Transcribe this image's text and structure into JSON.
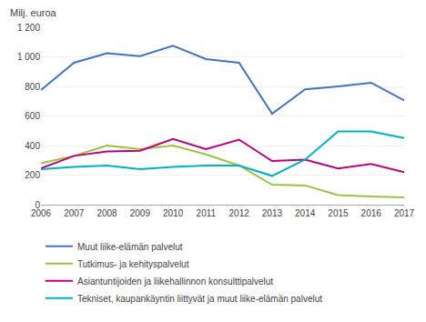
{
  "chart_data": {
    "type": "line",
    "ylabel": "Milj. euroa",
    "x": [
      2006,
      2007,
      2008,
      2009,
      2010,
      2011,
      2012,
      2013,
      2014,
      2015,
      2016,
      2017
    ],
    "xlim": [
      2006,
      2017
    ],
    "xticks": [
      2006,
      2007,
      2008,
      2009,
      2010,
      2011,
      2012,
      2013,
      2014,
      2015,
      2016,
      2017
    ],
    "ylim": [
      0,
      1200
    ],
    "yticks": [
      0,
      200,
      400,
      600,
      800,
      {
        "value": 1000,
        "label": "1 000"
      },
      {
        "value": 1200,
        "label": "1 200"
      }
    ],
    "grid": true,
    "legend": "bottom",
    "series": [
      {
        "name": "Muut liike-elämän palvelut",
        "color": "#4472c4",
        "values": [
          775,
          960,
          1025,
          1005,
          1075,
          985,
          960,
          615,
          780,
          800,
          825,
          705
        ]
      },
      {
        "name": "Tutkimus- ja kehityspalvelut",
        "color": "#9dc242",
        "values": [
          280,
          330,
          400,
          375,
          400,
          340,
          265,
          135,
          130,
          65,
          55,
          50
        ]
      },
      {
        "name": "Asiantuntijoiden ja liikehallinnon konsulttipalvelut",
        "color": "#c0007a",
        "values": [
          245,
          330,
          360,
          365,
          445,
          375,
          440,
          295,
          305,
          245,
          275,
          220
        ]
      },
      {
        "name": "Tekniset, kaupankäyntin liittyvät ja muut liike-elämän palvelut",
        "color": "#00b0c8",
        "values": [
          240,
          255,
          265,
          240,
          255,
          265,
          265,
          195,
          305,
          495,
          495,
          450
        ]
      }
    ]
  }
}
